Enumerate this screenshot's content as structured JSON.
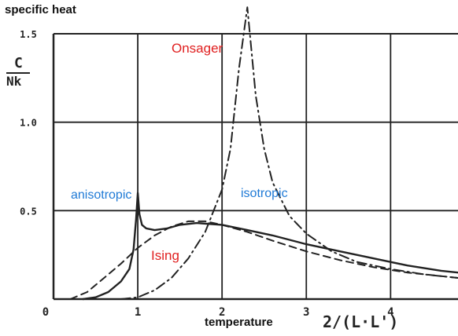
{
  "header": {
    "title": "specific heat"
  },
  "yaxis": {
    "label_numerator": "C",
    "label_denominator": "Nk"
  },
  "xaxis": {
    "label": "temperature",
    "unit_label": "2/(L·L')"
  },
  "annotations": {
    "onsager": "Onsager",
    "ising": "Ising",
    "anisotropic": "anisotropic",
    "isotropic": "isotropic"
  },
  "colors": {
    "red": "#e02020",
    "blue": "#1f7ad6",
    "ink": "#222222"
  },
  "chart_data": {
    "type": "line",
    "xlim": [
      0,
      4.8
    ],
    "ylim": [
      0,
      1.5
    ],
    "xticks": [
      "0",
      "1",
      "2",
      "3",
      "4"
    ],
    "yticks": [
      "0.5",
      "1.0",
      "1.5"
    ],
    "ytick_values": [
      0.5,
      1.0,
      1.5
    ],
    "xtick_values": [
      0,
      1,
      2,
      3,
      4
    ],
    "grid": true,
    "series": [
      {
        "style": "solid",
        "values_note": "anisotropic",
        "x": [
          0.35,
          0.5,
          0.65,
          0.8,
          0.9,
          0.95,
          0.98,
          1.0,
          1.02,
          1.05,
          1.1,
          1.2,
          1.35,
          1.5,
          1.7,
          2.0,
          2.3,
          2.6,
          3.0,
          3.4,
          3.8,
          4.2,
          4.6,
          4.8
        ],
        "y": [
          0.0,
          0.01,
          0.04,
          0.1,
          0.17,
          0.28,
          0.45,
          0.6,
          0.48,
          0.42,
          0.4,
          0.39,
          0.4,
          0.42,
          0.43,
          0.42,
          0.39,
          0.36,
          0.31,
          0.27,
          0.23,
          0.19,
          0.16,
          0.15
        ]
      },
      {
        "style": "dashed",
        "values_note": "isotropic",
        "x": [
          0.2,
          0.4,
          0.6,
          0.8,
          1.0,
          1.2,
          1.4,
          1.6,
          1.8,
          2.0,
          2.3,
          2.6,
          3.0,
          3.4,
          3.8,
          4.2,
          4.6,
          4.8
        ],
        "y": [
          0.0,
          0.04,
          0.12,
          0.2,
          0.29,
          0.36,
          0.41,
          0.44,
          0.44,
          0.42,
          0.38,
          0.33,
          0.27,
          0.22,
          0.18,
          0.15,
          0.13,
          0.12
        ]
      },
      {
        "style": "dashdot",
        "values_note": "Ising",
        "x": [
          0.8,
          1.0,
          1.2,
          1.4,
          1.6,
          1.8,
          2.0,
          2.1,
          2.2,
          2.3,
          2.4,
          2.5,
          2.6,
          2.8,
          3.0,
          3.3,
          3.6,
          4.0,
          4.4,
          4.8
        ],
        "y": [
          0.0,
          0.01,
          0.05,
          0.12,
          0.23,
          0.38,
          0.62,
          0.85,
          1.3,
          1.65,
          1.15,
          0.85,
          0.66,
          0.47,
          0.37,
          0.27,
          0.21,
          0.17,
          0.14,
          0.12
        ]
      }
    ]
  }
}
